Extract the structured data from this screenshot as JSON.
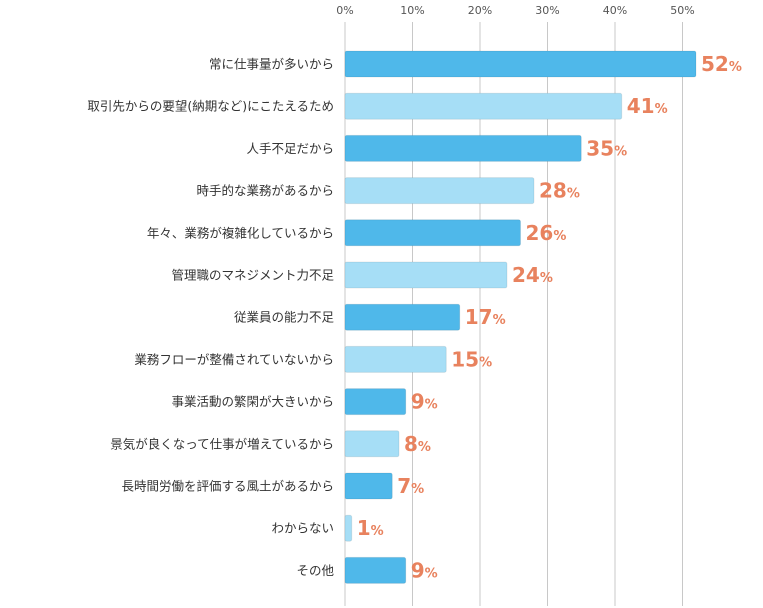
{
  "chart_data": {
    "type": "bar",
    "orientation": "horizontal",
    "title": "",
    "xlabel": "",
    "ylabel": "",
    "xlim": [
      0,
      55
    ],
    "x_ticks": [
      0,
      10,
      20,
      30,
      40,
      50
    ],
    "tick_unit": "%",
    "grid": true,
    "categories": [
      "常に仕事量が多いから",
      "取引先からの要望(納期など)にこたえるため",
      "人手不足だから",
      "時手的な業務があるから",
      "年々、業務が複雑化しているから",
      "管理職のマネジメント力不足",
      "従業員の能力不足",
      "業務フローが整備されていないから",
      "事業活動の繁閑が大きいから",
      "景気が良くなって仕事が増えているから",
      "長時間労働を評価する風土があるから",
      "わからない",
      "その他"
    ],
    "values": [
      52,
      41,
      35,
      28,
      26,
      24,
      17,
      15,
      9,
      8,
      7,
      1,
      9
    ],
    "value_suffix": "%",
    "colors": {
      "bar_dark": "#4fb8ea",
      "bar_light": "#a6def6",
      "value_label": "#e8825e",
      "grid": "#c8c8c8"
    }
  }
}
